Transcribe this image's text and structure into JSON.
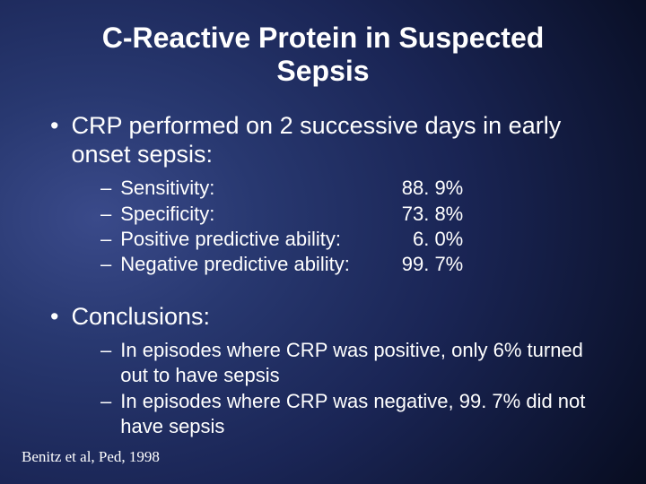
{
  "title": "C-Reactive Protein in Suspected Sepsis",
  "title_fontsize": 32,
  "title_color": "#ffffff",
  "bullet1": {
    "text": "CRP performed on 2 successive days in early onset sepsis:",
    "fontsize": 27,
    "color": "#ffffff",
    "marker": "•"
  },
  "metrics": {
    "fontsize": 22,
    "color": "#ffffff",
    "marker": "–",
    "rows": [
      {
        "label": "Sensitivity:",
        "value": "88. 9%"
      },
      {
        "label": "Specificity:",
        "value": "73. 8%"
      },
      {
        "label": "Positive predictive ability:",
        "value": "6. 0%"
      },
      {
        "label": "Negative predictive ability:",
        "value": "99. 7%"
      }
    ]
  },
  "bullet2": {
    "text": "Conclusions:",
    "fontsize": 27,
    "color": "#ffffff",
    "marker": "•"
  },
  "sub_bullets": {
    "fontsize": 22,
    "color": "#ffffff",
    "marker": "–",
    "items": [
      "In episodes where CRP was positive, only 6% turned out to have sepsis",
      "In episodes where CRP was negative, 99. 7% did not have sepsis"
    ]
  },
  "citation": {
    "text": "Benitz et al, Ped, 1998",
    "fontsize": 17,
    "color": "#ffffff"
  }
}
